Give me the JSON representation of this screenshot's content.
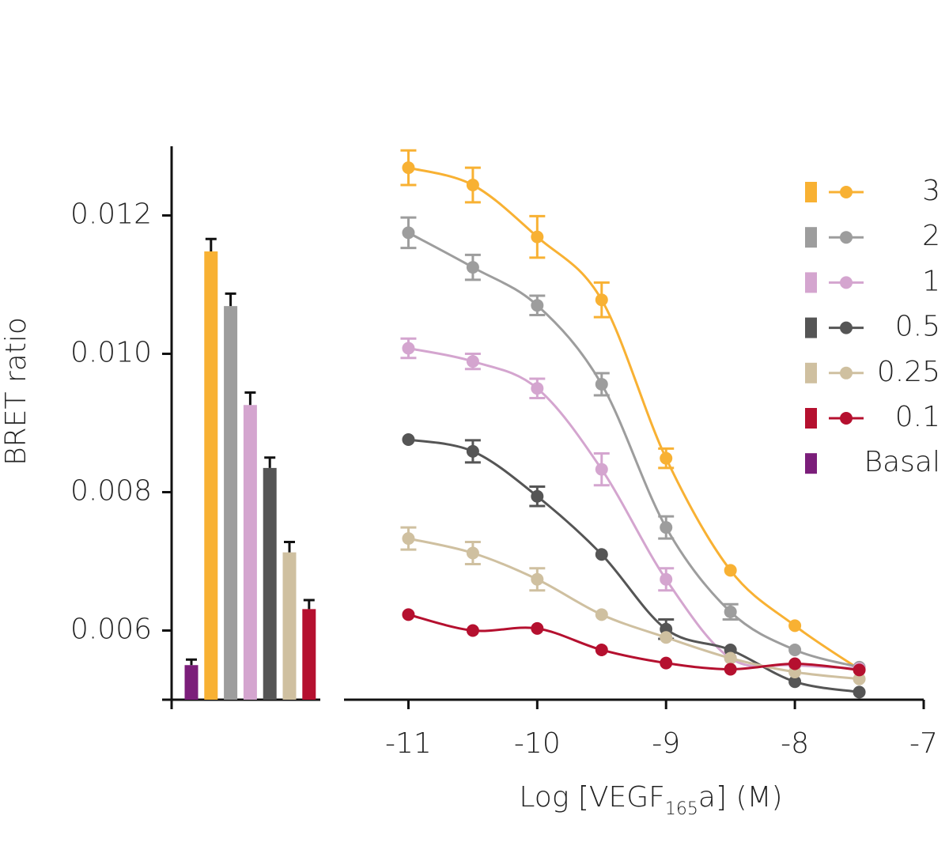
{
  "chart_data": [
    {
      "type": "bar",
      "y_label": "BRET ratio",
      "categories": [
        "Basal",
        "3",
        "2",
        "1",
        "0.5",
        "0.25",
        "0.1"
      ],
      "values": [
        0.0055,
        0.01148,
        0.01069,
        0.00926,
        0.00835,
        0.00713,
        0.00631
      ],
      "errors": [
        8e-05,
        0.00018,
        0.00018,
        0.00018,
        0.00015,
        0.00015,
        0.00013
      ],
      "colors": [
        "#7b1e7a",
        "#f8b133",
        "#9d9d9d",
        "#d4a5cf",
        "#555555",
        "#cfc0a0",
        "#b5102f"
      ],
      "ylim": [
        0.005,
        0.013
      ],
      "yticks": [
        0.006,
        0.008,
        {
          "value": 0.01,
          "label": "0.010"
        },
        0.012
      ]
    },
    {
      "type": "scatter",
      "x_label": [
        "Log [VEGF",
        "165",
        "a] (M)"
      ],
      "x": [
        -11,
        -10.5,
        -10,
        -9.5,
        -9,
        -8.5,
        -8,
        -7.5
      ],
      "xlim": [
        -11.5,
        -7
      ],
      "xticks": [
        -11,
        -10,
        -9,
        -8,
        -7
      ],
      "ylim": [
        0.005,
        0.013
      ],
      "series": [
        {
          "color": "#f8b133",
          "values": [
            0.01269,
            0.01244,
            0.01169,
            0.01078,
            0.00849,
            0.00687,
            0.00607,
            0.00544
          ],
          "errors": [
            0.00025,
            0.00025,
            0.0003,
            0.00025,
            0.00014,
            0,
            0,
            0
          ]
        },
        {
          "color": "#9d9d9d",
          "values": [
            0.01175,
            0.01125,
            0.0107,
            0.00956,
            0.00749,
            0.00627,
            0.00572,
            0.00547
          ],
          "errors": [
            0.00022,
            0.00018,
            0.00014,
            0.00016,
            0.00016,
            0.00011,
            0,
            0
          ]
        },
        {
          "color": "#d4a5cf",
          "values": [
            0.01008,
            0.00989,
            0.0095,
            0.00833,
            0.00674,
            0.0056,
            0.0055,
            0.00545
          ],
          "errors": [
            0.00014,
            0.00011,
            0.00014,
            0.00023,
            0.00016,
            0,
            0,
            0
          ]
        },
        {
          "color": "#555555",
          "values": [
            0.00876,
            0.00859,
            0.00794,
            0.0071,
            0.00602,
            0.00572,
            0.00526,
            0.00511
          ],
          "errors": [
            0,
            0.00016,
            0.00014,
            0,
            0.00014,
            0,
            0,
            0
          ]
        },
        {
          "color": "#cfc0a0",
          "values": [
            0.00733,
            0.00712,
            0.00674,
            0.00623,
            0.0059,
            0.0056,
            0.0054,
            0.0053
          ],
          "errors": [
            0.00016,
            0.00016,
            0.00016,
            0,
            0,
            0,
            0,
            0
          ]
        },
        {
          "color": "#b5102f",
          "values": [
            0.00623,
            0.006,
            0.00603,
            0.00572,
            0.00553,
            0.00544,
            0.00552,
            0.00543
          ],
          "errors": [
            0,
            0,
            0,
            0,
            0,
            0,
            0,
            0
          ]
        }
      ]
    }
  ]
}
